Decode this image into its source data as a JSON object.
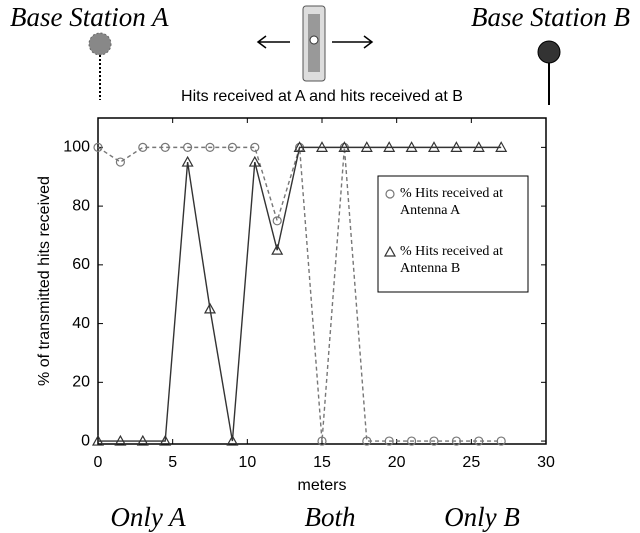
{
  "chart_data": {
    "type": "line",
    "title": "Hits received at A and hits received at B",
    "xlabel": "meters",
    "ylabel": "% of transmitted hits received",
    "x": [
      0,
      1.5,
      3,
      4.5,
      6,
      7.5,
      9,
      10.5,
      12,
      13.5,
      15,
      16.5,
      18,
      19.5,
      21,
      22.5,
      24,
      25.5,
      27
    ],
    "series": [
      {
        "name": "% Hits received at Antenna A",
        "color": "#777777",
        "marker": "circle",
        "linestyle": "dashed",
        "values": [
          100,
          95,
          100,
          100,
          100,
          100,
          100,
          100,
          75,
          100,
          0,
          100,
          0,
          0,
          0,
          0,
          0,
          0,
          0
        ]
      },
      {
        "name": "% Hits received at Antenna B",
        "color": "#333333",
        "marker": "triangle",
        "linestyle": "solid",
        "values": [
          0,
          0,
          0,
          0,
          95,
          45,
          0,
          95,
          65,
          100,
          100,
          100,
          100,
          100,
          100,
          100,
          100,
          100,
          100
        ]
      }
    ],
    "xlim": [
      0,
      30
    ],
    "xticks": [
      0,
      5,
      10,
      15,
      20,
      25,
      30
    ],
    "ylim": [
      -1,
      110
    ],
    "yticks": [
      0,
      20,
      40,
      60,
      80,
      100
    ],
    "legend": "upper right",
    "annotations": {
      "station_a": "Base Station A",
      "station_b": "Base Station B",
      "zones": [
        "Only A",
        "Both",
        "Only B"
      ]
    }
  }
}
